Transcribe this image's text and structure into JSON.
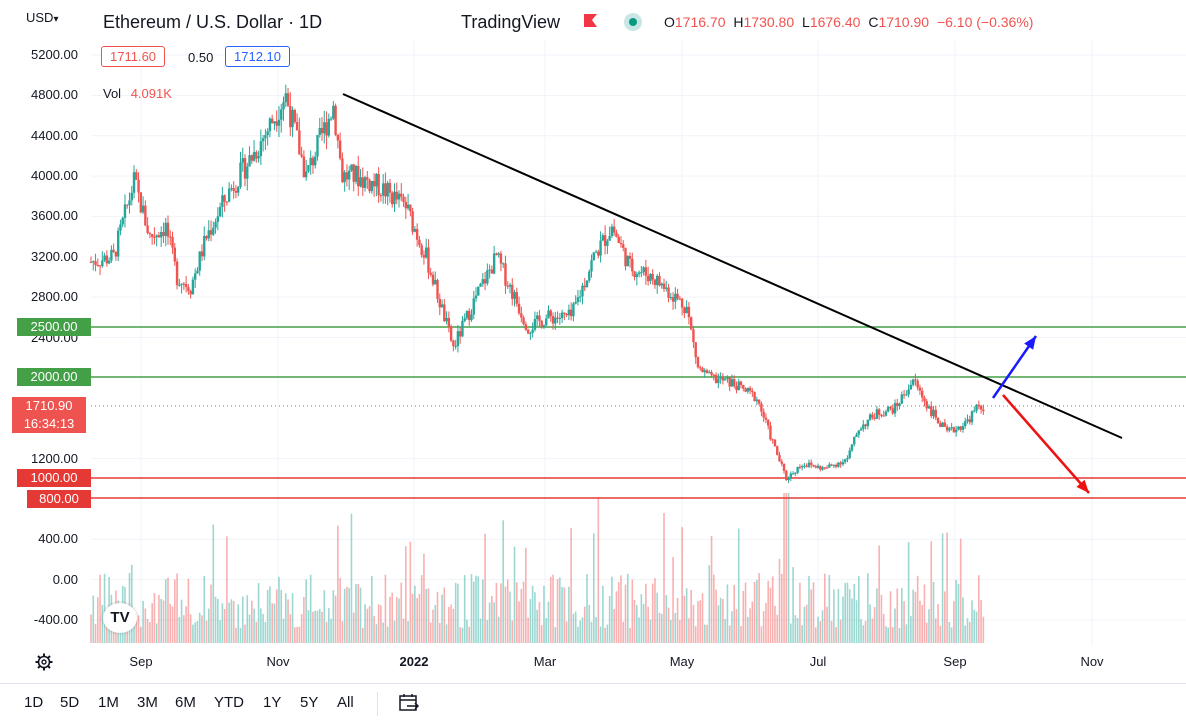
{
  "header": {
    "currency": "USD",
    "title": "Ethereum / U.S. Dollar · 1D",
    "brand": "TradingView",
    "ohlc": {
      "open_label": "O",
      "open": "1716.70",
      "high_label": "H",
      "high": "1730.80",
      "low_label": "L",
      "low": "1676.40",
      "close_label": "C",
      "close": "1710.90",
      "change": "−6.10 (−0.36%)"
    },
    "sell_price": "1711.60",
    "spread": "0.50",
    "buy_price": "1712.10",
    "volume_label": "Vol",
    "volume_value": "4.091K"
  },
  "price_tags": {
    "level_2500": "2500.00",
    "level_2000": "2000.00",
    "current_price": "1710.90",
    "countdown": "16:34:13",
    "level_1000": "1000.00",
    "level_800": "800.00"
  },
  "colors": {
    "up": "#26a69a",
    "down": "#ef5350",
    "support_green": "#43a047",
    "support_red": "#e53935",
    "trendline": "#000000",
    "arrow_up": "#1a1aff",
    "arrow_down": "#ee1111"
  },
  "chart_data": {
    "type": "candlestick",
    "title": "Ethereum / U.S. Dollar · 1D",
    "y_axis": {
      "ticks": [
        "5200.00",
        "4800.00",
        "4400.00",
        "4000.00",
        "3600.00",
        "3200.00",
        "2800.00",
        "2400.00",
        "1200.00",
        "400.00",
        "0.00",
        "-400.00"
      ],
      "range": [
        -700,
        5400
      ]
    },
    "x_axis": {
      "ticks": [
        "Sep",
        "Nov",
        "2022",
        "Mar",
        "May",
        "Jul",
        "Sep",
        "Nov"
      ],
      "bold_ticks": [
        "2022"
      ],
      "range": [
        "2021-08-15",
        "2022-11-30"
      ]
    },
    "price_path": [
      {
        "date": "2021-08-15",
        "price": 3150
      },
      {
        "date": "2021-08-25",
        "price": 3200
      },
      {
        "date": "2021-09-03",
        "price": 3950
      },
      {
        "date": "2021-09-10",
        "price": 3400
      },
      {
        "date": "2021-09-17",
        "price": 3500
      },
      {
        "date": "2021-09-22",
        "price": 3000
      },
      {
        "date": "2021-09-28",
        "price": 2900
      },
      {
        "date": "2021-10-05",
        "price": 3400
      },
      {
        "date": "2021-10-15",
        "price": 3850
      },
      {
        "date": "2021-10-28",
        "price": 4300
      },
      {
        "date": "2021-11-09",
        "price": 4800
      },
      {
        "date": "2021-11-18",
        "price": 4000
      },
      {
        "date": "2021-11-30",
        "price": 4700
      },
      {
        "date": "2021-12-04",
        "price": 4000
      },
      {
        "date": "2021-12-10",
        "price": 4000
      },
      {
        "date": "2021-12-20",
        "price": 3900
      },
      {
        "date": "2022-01-01",
        "price": 3700
      },
      {
        "date": "2022-01-10",
        "price": 3200
      },
      {
        "date": "2022-01-22",
        "price": 2300
      },
      {
        "date": "2022-02-01",
        "price": 2800
      },
      {
        "date": "2022-02-10",
        "price": 3200
      },
      {
        "date": "2022-02-24",
        "price": 2500
      },
      {
        "date": "2022-03-05",
        "price": 2600
      },
      {
        "date": "2022-03-15",
        "price": 2600
      },
      {
        "date": "2022-03-25",
        "price": 3200
      },
      {
        "date": "2022-04-02",
        "price": 3500
      },
      {
        "date": "2022-04-10",
        "price": 3100
      },
      {
        "date": "2022-04-20",
        "price": 3000
      },
      {
        "date": "2022-04-30",
        "price": 2800
      },
      {
        "date": "2022-05-05",
        "price": 2700
      },
      {
        "date": "2022-05-10",
        "price": 2100
      },
      {
        "date": "2022-05-15",
        "price": 2000
      },
      {
        "date": "2022-05-25",
        "price": 1950
      },
      {
        "date": "2022-06-05",
        "price": 1800
      },
      {
        "date": "2022-06-13",
        "price": 1300
      },
      {
        "date": "2022-06-18",
        "price": 1000
      },
      {
        "date": "2022-06-25",
        "price": 1150
      },
      {
        "date": "2022-07-05",
        "price": 1100
      },
      {
        "date": "2022-07-15",
        "price": 1200
      },
      {
        "date": "2022-07-20",
        "price": 1500
      },
      {
        "date": "2022-07-28",
        "price": 1650
      },
      {
        "date": "2022-08-05",
        "price": 1700
      },
      {
        "date": "2022-08-13",
        "price": 1980
      },
      {
        "date": "2022-08-20",
        "price": 1700
      },
      {
        "date": "2022-08-28",
        "price": 1450
      },
      {
        "date": "2022-09-05",
        "price": 1550
      },
      {
        "date": "2022-09-11",
        "price": 1720
      },
      {
        "date": "2022-09-13",
        "price": 1710
      }
    ],
    "volume_style": "thin bars at bottom, mixed teal/red, with spike near mid-June 2022",
    "horizontal_levels": [
      {
        "value": 2500,
        "color": "#43a047"
      },
      {
        "value": 2000,
        "color": "#43a047"
      },
      {
        "value": 1000,
        "color": "#e53935"
      },
      {
        "value": 800,
        "color": "#e53935"
      }
    ],
    "current_price_line": {
      "value": 1710.9,
      "style": "dotted"
    },
    "trendline": [
      {
        "date": "2021-11-28",
        "price": 4800
      },
      {
        "date": "2022-11-15",
        "price": 1350
      }
    ],
    "arrows": [
      {
        "from": {
          "date": "2022-09-14",
          "price": 1750
        },
        "to": {
          "date": "2022-10-10",
          "price": 2450
        },
        "color": "#1a1aff"
      },
      {
        "from": {
          "date": "2022-09-18",
          "price": 1850
        },
        "to": {
          "date": "2022-10-20",
          "price": 850
        },
        "color": "#ee1111"
      }
    ]
  },
  "bottom_bar": {
    "ranges": [
      "1D",
      "5D",
      "1M",
      "3M",
      "6M",
      "YTD",
      "1Y",
      "5Y",
      "All"
    ],
    "icons": [
      "gear-icon",
      "calendar-range-icon",
      "tradingview-logo-icon"
    ],
    "logo_text": "TV"
  }
}
